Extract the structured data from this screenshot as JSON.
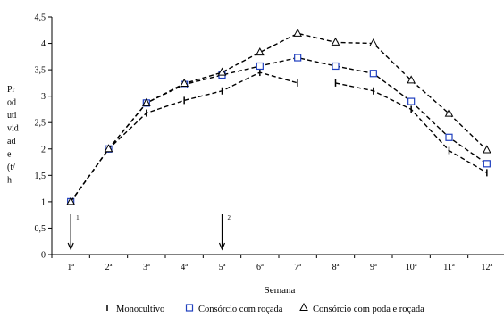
{
  "chart_data": {
    "type": "line",
    "xlabel": "Semana",
    "ylabel": "Produtividade (t/ha)",
    "ylabel_lines": [
      "Pr",
      "od",
      "uti",
      "vid",
      "ad",
      "e",
      "(t/",
      "h"
    ],
    "ylim": [
      0,
      4.5
    ],
    "yticks": [
      "0",
      "0,5",
      "1",
      "1,5",
      "2",
      "2,5",
      "3",
      "3,5",
      "4",
      "4,5"
    ],
    "categories": [
      "1ª",
      "2ª",
      "3ª",
      "4ª",
      "5ª",
      "6ª",
      "7ª",
      "8ª",
      "9ª",
      "10ª",
      "11ª",
      "12ª"
    ],
    "grid": false,
    "legend_position": "bottom",
    "series": [
      {
        "name": "Monocultivo",
        "marker": "bar",
        "values": [
          1.0,
          2.0,
          2.68,
          2.92,
          3.1,
          3.45,
          3.25,
          3.25,
          3.1,
          2.75,
          1.97,
          1.55
        ]
      },
      {
        "name": "Consórcio com roçada",
        "marker": "square",
        "values": [
          1.0,
          2.0,
          2.87,
          3.22,
          3.4,
          3.57,
          3.73,
          3.57,
          3.43,
          2.9,
          2.22,
          1.72
        ]
      },
      {
        "name": "Consórcio com poda e roçada",
        "marker": "triangle",
        "values": [
          1.0,
          2.0,
          2.87,
          3.24,
          3.45,
          3.83,
          4.19,
          4.02,
          4.0,
          3.3,
          2.67,
          1.98
        ]
      }
    ],
    "annotations": [
      {
        "label": "1",
        "category": "1ª",
        "type": "arrow-down"
      },
      {
        "label": "2",
        "category": "5ª",
        "type": "arrow-down"
      }
    ],
    "colors": {
      "line": "#000000",
      "square_marker": "#1f3fbf",
      "triangle_marker": "#000000"
    }
  }
}
